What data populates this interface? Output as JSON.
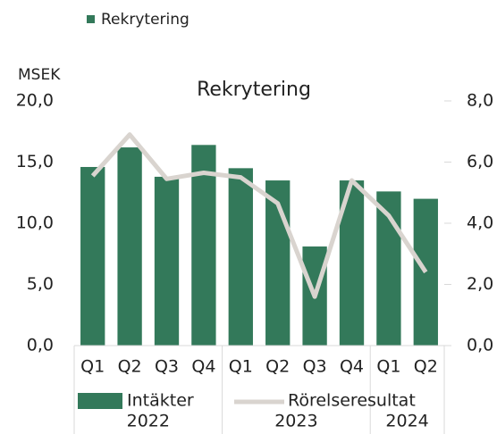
{
  "chart_data": {
    "type": "bar",
    "top_legend": "Rekrytering",
    "top_legend_color": "#33795a",
    "title": "Rekrytering",
    "ylabel": "MSEK",
    "categories": [
      "Q1",
      "Q2",
      "Q3",
      "Q4",
      "Q1",
      "Q2",
      "Q3",
      "Q4",
      "Q1",
      "Q2"
    ],
    "years": [
      "2022",
      "2022",
      "2022",
      "2022",
      "2023",
      "2023",
      "2023",
      "2023",
      "2024",
      "2024"
    ],
    "series": [
      {
        "name": "Intäkter",
        "type": "bar",
        "color": "#33795a",
        "values": [
          14.6,
          16.2,
          13.8,
          16.4,
          14.5,
          13.5,
          8.1,
          13.5,
          12.6,
          12.0
        ]
      },
      {
        "name": "Rörelseresultat",
        "type": "line",
        "axis": "y2",
        "color": "#d9d4cf",
        "values": [
          5.55,
          6.9,
          5.45,
          5.65,
          5.5,
          4.65,
          1.6,
          5.4,
          4.25,
          2.4
        ]
      }
    ],
    "ylim": [
      0,
      20
    ],
    "yticks": [
      {
        "value": 0,
        "label": "0,0"
      },
      {
        "value": 5,
        "label": "5,0"
      },
      {
        "value": 10,
        "label": "10,0"
      },
      {
        "value": 15,
        "label": "15,0"
      },
      {
        "value": 20,
        "label": "20,0"
      }
    ],
    "y2lim": [
      0,
      8
    ],
    "y2ticks": [
      {
        "value": 0,
        "label": "0,0"
      },
      {
        "value": 2,
        "label": "2,0"
      },
      {
        "value": 4,
        "label": "4,0"
      },
      {
        "value": 6,
        "label": "6,0"
      },
      {
        "value": 8,
        "label": "8,0"
      }
    ],
    "grid": false
  }
}
